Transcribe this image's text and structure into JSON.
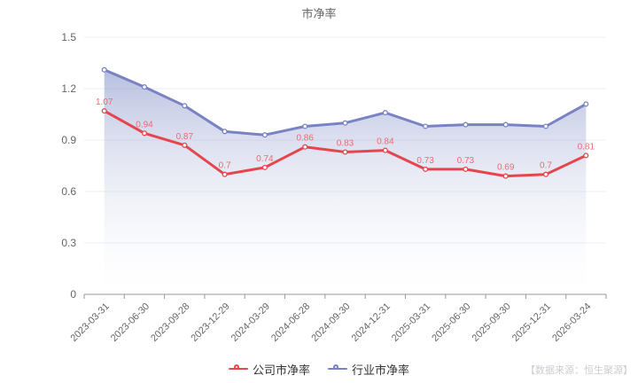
{
  "title": "市净率",
  "source_note": "【数据来源：恒生聚源】",
  "colors": {
    "company_line": "#e5464e",
    "company_label": "#ec6a70",
    "industry_line": "#7983c4",
    "area_top": "#8d99cc",
    "area_bottom": "#ffffff",
    "grid_line": "#e9eef6",
    "axis_line": "#999999",
    "axis_text": "#666666"
  },
  "chart_data": {
    "type": "line",
    "title": "市净率",
    "categories": [
      "2023-03-31",
      "2023-06-30",
      "2023-09-28",
      "2023-12-29",
      "2024-03-29",
      "2024-06-28",
      "2024-09-30",
      "2024-12-31",
      "2025-03-31",
      "2025-06-30",
      "2025-09-30",
      "2025-12-31",
      "2026-03-24"
    ],
    "series": [
      {
        "name": "公司市净率",
        "color": "#e5464e",
        "label_color": "#ec6a70",
        "show_labels": true,
        "values": [
          1.07,
          0.94,
          0.87,
          0.7,
          0.74,
          0.86,
          0.83,
          0.84,
          0.73,
          0.73,
          0.69,
          0.7,
          0.81
        ],
        "labels": [
          "1.07",
          "0.94",
          "0.87",
          "0.7",
          "0.74",
          "0.86",
          "0.83",
          "0.84",
          "0.73",
          "0.73",
          "0.69",
          "0.7",
          "0.81"
        ]
      },
      {
        "name": "行业市净率",
        "color": "#7983c4",
        "area": true,
        "show_labels": false,
        "values": [
          1.31,
          1.21,
          1.1,
          0.95,
          0.93,
          0.98,
          1.0,
          1.06,
          0.98,
          0.99,
          0.99,
          0.98,
          1.11
        ]
      }
    ],
    "xlabel": "",
    "ylabel": "",
    "ylim": [
      0,
      1.5
    ],
    "yticks": [
      0,
      0.3,
      0.6,
      0.9,
      1.2,
      1.5
    ],
    "ytick_labels": [
      "0",
      "0.3",
      "0.6",
      "0.9",
      "1.2",
      "1.5"
    ],
    "grid": true,
    "legend_position": "bottom"
  }
}
